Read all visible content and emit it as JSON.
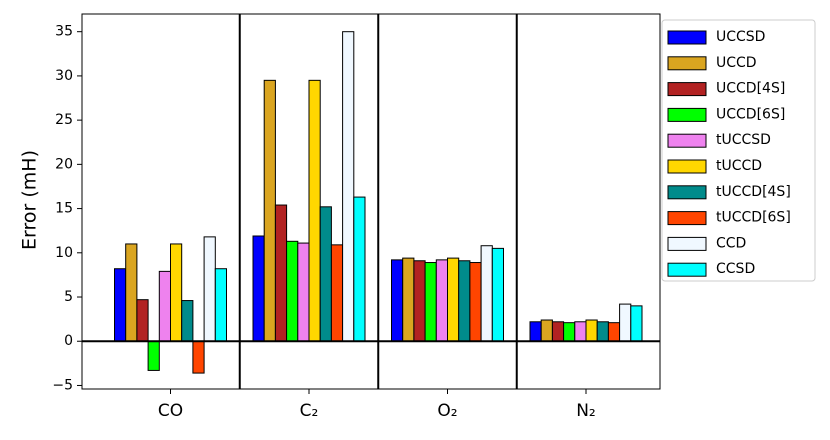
{
  "chart_data": {
    "type": "bar",
    "y_label": "Error (mH)",
    "categories": [
      "CO",
      "C₂",
      "O₂",
      "N₂"
    ],
    "series": [
      {
        "name": "UCCSD",
        "color": "#0000ff",
        "values": [
          8.2,
          11.9,
          9.2,
          2.2
        ]
      },
      {
        "name": "UCCD",
        "color": "#daa520",
        "values": [
          11.0,
          29.5,
          9.4,
          2.4
        ]
      },
      {
        "name": "UCCD[4S]",
        "color": "#b22222",
        "values": [
          4.7,
          15.4,
          9.1,
          2.2
        ]
      },
      {
        "name": "UCCD[6S]",
        "color": "#00ff00",
        "values": [
          -3.3,
          11.3,
          8.9,
          2.1
        ]
      },
      {
        "name": "tUCCSD",
        "color": "#ee82ee",
        "values": [
          7.9,
          11.1,
          9.2,
          2.2
        ]
      },
      {
        "name": "tUCCD",
        "color": "#ffd700",
        "values": [
          11.0,
          29.5,
          9.4,
          2.4
        ]
      },
      {
        "name": "tUCCD[4S]",
        "color": "#008b8b",
        "values": [
          4.6,
          15.2,
          9.1,
          2.2
        ]
      },
      {
        "name": "tUCCD[6S]",
        "color": "#ff4500",
        "values": [
          -3.6,
          10.9,
          8.9,
          2.1
        ]
      },
      {
        "name": "CCD",
        "color": "#f0f8ff",
        "values": [
          11.8,
          35.0,
          10.8,
          4.2
        ]
      },
      {
        "name": "CCSD",
        "color": "#00ffff",
        "values": [
          8.2,
          16.3,
          10.5,
          4.0
        ]
      }
    ],
    "ylim": [
      -5.4,
      37
    ],
    "yticks": [
      {
        "value": -5,
        "label": "−5"
      },
      0,
      5,
      10,
      15,
      20,
      25,
      30,
      35
    ],
    "legend": "outside right"
  }
}
